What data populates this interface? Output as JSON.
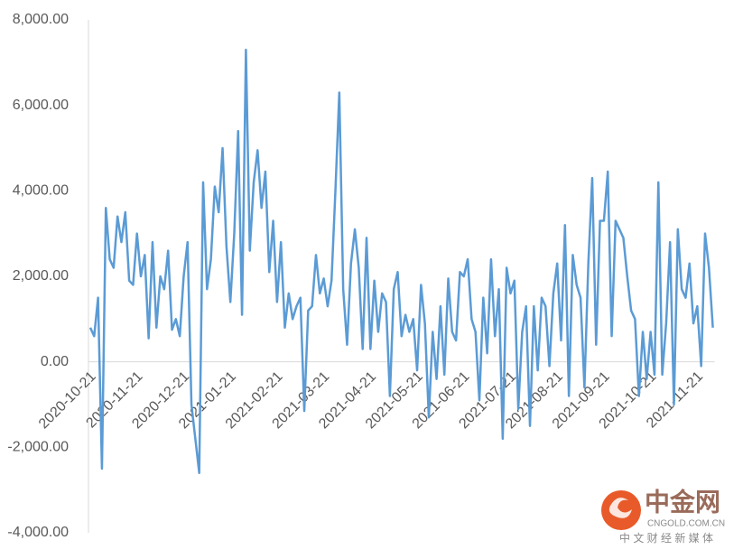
{
  "chart_data": {
    "type": "line",
    "categories": [
      "2020-10-21",
      null,
      null,
      null,
      null,
      null,
      null,
      null,
      null,
      null,
      null,
      null,
      "2020-11-21",
      null,
      null,
      null,
      null,
      null,
      null,
      null,
      null,
      null,
      null,
      null,
      "2020-12-21",
      null,
      null,
      null,
      null,
      null,
      null,
      null,
      null,
      null,
      null,
      null,
      "2021-01-21",
      null,
      null,
      null,
      null,
      null,
      null,
      null,
      null,
      null,
      null,
      null,
      "2021-02-21",
      null,
      null,
      null,
      null,
      null,
      null,
      null,
      null,
      null,
      null,
      null,
      "2021-03-21",
      null,
      null,
      null,
      null,
      null,
      null,
      null,
      null,
      null,
      null,
      null,
      "2021-04-21",
      null,
      null,
      null,
      null,
      null,
      null,
      null,
      null,
      null,
      null,
      null,
      "2021-05-21",
      null,
      null,
      null,
      null,
      null,
      null,
      null,
      null,
      null,
      null,
      null,
      "2021-06-21",
      null,
      null,
      null,
      null,
      null,
      null,
      null,
      null,
      null,
      null,
      null,
      "2021-07-21",
      null,
      null,
      null,
      null,
      null,
      null,
      null,
      null,
      null,
      null,
      null,
      "2021-08-21",
      null,
      null,
      null,
      null,
      null,
      null,
      null,
      null,
      null,
      null,
      null,
      "2021-09-21",
      null,
      null,
      null,
      null,
      null,
      null,
      null,
      null,
      null,
      null,
      null,
      "2021-10-21",
      null,
      null,
      null,
      null,
      null,
      null,
      null,
      null,
      null,
      null,
      null,
      "2021-11-21",
      null,
      null,
      null,
      null
    ],
    "values": [
      800,
      600,
      1500,
      -2500,
      3600,
      2400,
      2200,
      3400,
      2800,
      3500,
      1900,
      1800,
      3000,
      2000,
      2500,
      550,
      2800,
      800,
      2000,
      1700,
      2600,
      750,
      1000,
      600,
      2000,
      2800,
      -1000,
      -1800,
      -2600,
      4200,
      1700,
      2400,
      4100,
      3500,
      5000,
      2700,
      1400,
      3000,
      5400,
      1100,
      7300,
      2600,
      4200,
      4950,
      3600,
      4450,
      2100,
      3300,
      1400,
      2800,
      800,
      1600,
      1000,
      1300,
      1500,
      -1150,
      1200,
      1300,
      2500,
      1600,
      1950,
      1300,
      1900,
      4000,
      6300,
      1700,
      400,
      2300,
      3100,
      2200,
      300,
      2900,
      300,
      1900,
      700,
      1600,
      1400,
      -800,
      1700,
      2100,
      600,
      1100,
      700,
      1000,
      -200,
      1800,
      900,
      -1300,
      700,
      -400,
      1300,
      -300,
      1950,
      700,
      500,
      2100,
      2000,
      2400,
      1000,
      700,
      -900,
      1500,
      200,
      2400,
      600,
      1700,
      -1800,
      2200,
      1600,
      1900,
      -1100,
      700,
      1300,
      -1500,
      1300,
      -200,
      1500,
      1300,
      -100,
      1600,
      2300,
      500,
      3200,
      -800,
      2500,
      1800,
      1500,
      -600,
      2300,
      4300,
      400,
      3300,
      3300,
      4450,
      600,
      3300,
      3100,
      2900,
      2000,
      1200,
      1000,
      -800,
      700,
      -400,
      700,
      -300,
      4200,
      -300,
      900,
      2800,
      -1000,
      3100,
      1700,
      1500,
      2300,
      900,
      1300,
      -100,
      3000,
      2200,
      800
    ],
    "color": "#5b9bd5",
    "ylim": [
      -4000,
      8000
    ],
    "yticks": [
      {
        "value": -4000,
        "label": "-4,000.00"
      },
      {
        "value": -2000,
        "label": "-2,000.00"
      },
      {
        "value": 0,
        "label": "0.00"
      },
      {
        "value": 2000,
        "label": "2,000.00"
      },
      {
        "value": 4000,
        "label": "4,000.00"
      },
      {
        "value": 6000,
        "label": "6,000.00"
      },
      {
        "value": 8000,
        "label": "8,000.00"
      }
    ],
    "grid": false,
    "watermark": {
      "brand": "中金网",
      "domain": "CNGOLD.COM.CN",
      "tagline": "中 文 财 经 新 媒 体"
    }
  }
}
